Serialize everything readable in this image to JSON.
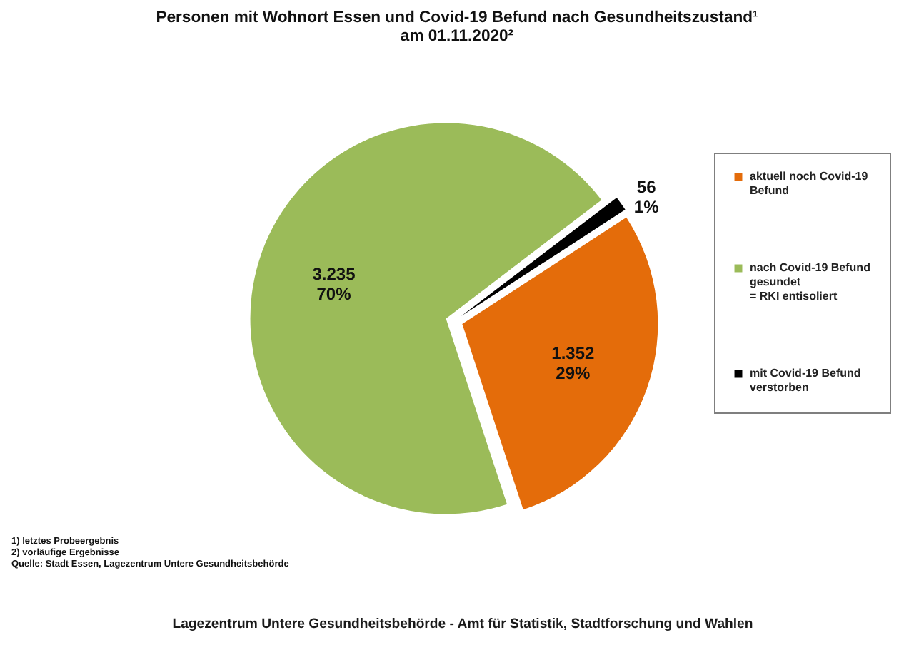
{
  "chart_data": {
    "type": "pie",
    "title": "Personen mit Wohnort Essen und Covid-19 Befund nach Gesundheitszustand¹ am 01.11.2020²",
    "categories": [
      "aktuell noch Covid-19 Befund",
      "nach Covid-19 Befund gesundet = RKI entisoliert",
      "mit Covid-19 Befund verstorben"
    ],
    "values": [
      1352,
      3235,
      56
    ],
    "colors": [
      "#e46c0a",
      "#9bbb59",
      "#000000"
    ],
    "value_labels": [
      "1.352 29%",
      "3.235 70%",
      "56 1%"
    ],
    "legend": "right",
    "annotations": [
      "1) letztes Probeergebnis",
      "2) vorläufige Ergebnisse",
      "Quelle: Stadt Essen, Lagezentrum Untere Gesundheitsbehörde",
      "Lagezentrum Untere Gesundheitsbehörde - Amt für Statistik, Stadtforschung und Wahlen"
    ]
  }
}
